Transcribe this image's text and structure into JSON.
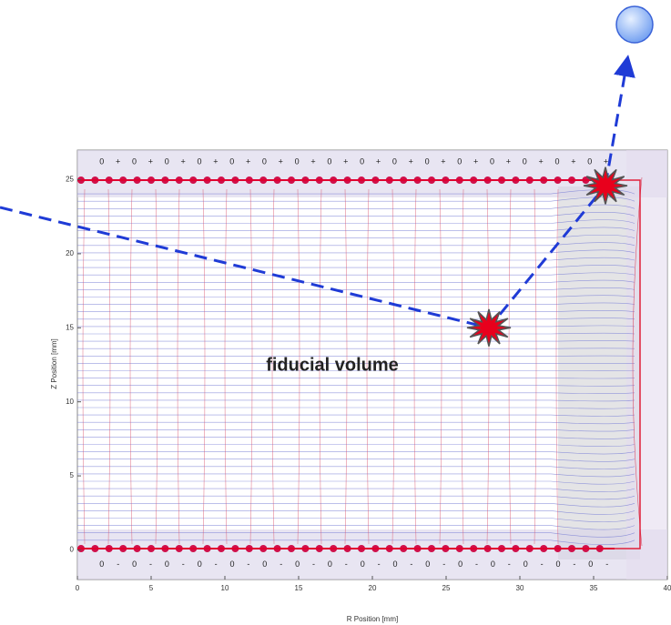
{
  "chart_data": {
    "type": "scatter",
    "xlabel": "R Position [mm]",
    "ylabel": "Z Position [mm]",
    "xlim": [
      0,
      40
    ],
    "ylim": [
      -2,
      27
    ],
    "xticks": [
      0,
      5,
      10,
      15,
      20,
      25,
      30,
      35,
      40
    ],
    "yticks": [
      0,
      5,
      10,
      15,
      20,
      25
    ],
    "annotation": "fiducial volume",
    "top_signs": "0 + 0 + 0 + 0 + 0 + 0 + 0 + 0 + 0 + 0 + 0 + 0 + 0 + 0 + 0 + 0 +",
    "bottom_signs": "0 - 0 - 0 - 0 - 0 - 0 - 0 - 0 - 0 - 0 - 0 - 0 - 0 - 0 - 0 - 0 -",
    "series": [
      {
        "color": "#e8001c",
        "x": [
          27.9,
          35.8
        ],
        "values": [
          15.0,
          24.6
        ]
      }
    ]
  }
}
